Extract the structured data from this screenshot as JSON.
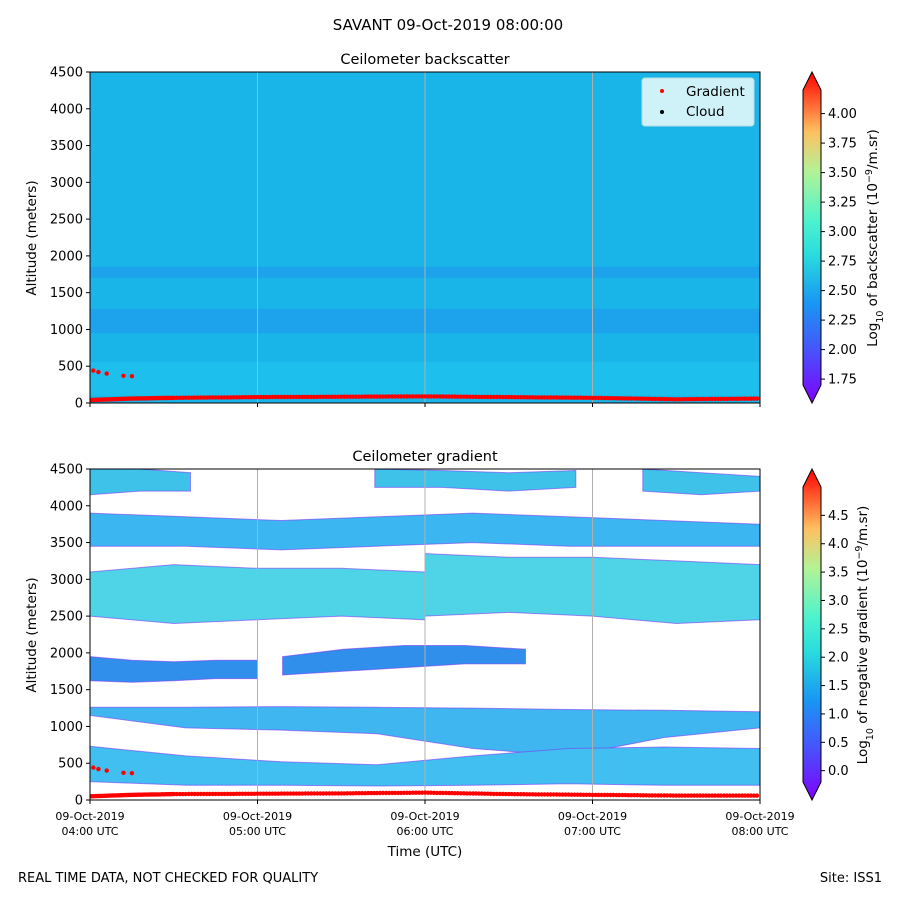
{
  "suptitle": "SAVANT 09-Oct-2019 08:00:00",
  "footer_left": "REAL TIME DATA, NOT CHECKED FOR QUALITY",
  "footer_right": "Site: ISS1",
  "colors": {
    "bg_backscatter": "#19b4e8",
    "band_dark": "#2196ef",
    "band_light": "#21c8ee",
    "gradient_marker": "#ff0000",
    "cloud_marker": "#000000",
    "legend_bg": "#cff2f8"
  },
  "chart_data": [
    {
      "type": "heatmap",
      "title": "Ceilometer backscatter",
      "ylabel": "Altitude (meters)",
      "xlabel": "",
      "xlim": [
        4.0,
        8.0
      ],
      "ylim": [
        0,
        4500
      ],
      "yticks": [
        "0",
        "500",
        "1000",
        "1500",
        "2000",
        "2500",
        "3000",
        "3500",
        "4000",
        "4500"
      ],
      "xticks_hours": [
        4,
        5,
        6,
        7,
        8
      ],
      "show_xticklabels": false,
      "legend": {
        "position": "top-right",
        "entries": [
          "Gradient",
          "Cloud"
        ]
      },
      "colorbar": {
        "label": "Log10 of backscatter (10^-9/m.sr)",
        "label_prefix": "Log",
        "label_sub": "10",
        "label_mid": " of backscatter (10",
        "label_sup": "−9",
        "label_suffix": "/m.sr)",
        "range": [
          1.7,
          4.2
        ],
        "ticks": [
          "1.75",
          "2.00",
          "2.25",
          "2.50",
          "2.75",
          "3.00",
          "3.25",
          "3.50",
          "3.75",
          "4.00"
        ]
      },
      "bands": [
        {
          "alt_lo": 100,
          "alt_hi": 560,
          "shade": "light"
        },
        {
          "alt_lo": 950,
          "alt_hi": 1280,
          "shade": "dark"
        },
        {
          "alt_lo": 1700,
          "alt_hi": 1850,
          "shade": "dark"
        }
      ],
      "gradient_points": {
        "baseline": [
          [
            4.0,
            40
          ],
          [
            4.25,
            60
          ],
          [
            4.5,
            70
          ],
          [
            5.0,
            80
          ],
          [
            5.5,
            85
          ],
          [
            6.0,
            90
          ],
          [
            6.5,
            80
          ],
          [
            7.0,
            70
          ],
          [
            7.5,
            50
          ],
          [
            8.0,
            60
          ]
        ],
        "layer": [
          [
            4.02,
            440
          ],
          [
            4.05,
            420
          ],
          [
            4.1,
            400
          ],
          [
            4.2,
            370
          ],
          [
            4.25,
            365
          ]
        ]
      }
    },
    {
      "type": "heatmap",
      "title": "Ceilometer gradient",
      "ylabel": "Altitude (meters)",
      "xlabel": "Time (UTC)",
      "xlim": [
        4.0,
        8.0
      ],
      "ylim": [
        0,
        4500
      ],
      "yticks": [
        "0",
        "500",
        "1000",
        "1500",
        "2000",
        "2500",
        "3000",
        "3500",
        "4000",
        "4500"
      ],
      "xticks_hours": [
        4,
        5,
        6,
        7,
        8
      ],
      "xtick_labels": [
        [
          "09-Oct-2019",
          "04:00 UTC"
        ],
        [
          "09-Oct-2019",
          "05:00 UTC"
        ],
        [
          "09-Oct-2019",
          "06:00 UTC"
        ],
        [
          "09-Oct-2019",
          "07:00 UTC"
        ],
        [
          "09-Oct-2019",
          "08:00 UTC"
        ]
      ],
      "colorbar": {
        "label": "Log10 of negative gradient (10^-9/m.sr)",
        "label_prefix": "Log",
        "label_sub": "10",
        "label_mid": " of negative gradient (10",
        "label_sup": "−9",
        "label_suffix": "/m.sr)",
        "range": [
          -0.2,
          5.0
        ],
        "ticks": [
          "0.0",
          "0.5",
          "1.0",
          "1.5",
          "2.0",
          "2.5",
          "3.0",
          "3.5",
          "4.0",
          "4.5"
        ]
      },
      "layers": [
        {
          "t0": 4.0,
          "t1": 8.0,
          "alt_top": [
            1260,
            1260,
            1270,
            1260,
            1250,
            1230,
            1220,
            1200
          ],
          "alt_bot": [
            1150,
            980,
            950,
            900,
            700,
            600,
            850,
            980
          ],
          "fill": "#3fb6f0"
        },
        {
          "t0": 4.0,
          "t1": 8.0,
          "alt_top": [
            730,
            600,
            520,
            480,
            600,
            700,
            720,
            700
          ],
          "alt_bot": [
            250,
            200,
            200,
            190,
            200,
            220,
            200,
            200
          ],
          "fill": "#40bff0"
        },
        {
          "t0": 4.0,
          "t1": 5.0,
          "alt_top": [
            1950,
            1900,
            1880,
            1900,
            1900
          ],
          "alt_bot": [
            1620,
            1600,
            1620,
            1650,
            1650
          ],
          "fill": "#2f8fea"
        },
        {
          "t0": 5.15,
          "t1": 6.6,
          "alt_top": [
            1950,
            2050,
            2100,
            2100,
            2050
          ],
          "alt_bot": [
            1700,
            1750,
            1800,
            1850,
            1850
          ],
          "fill": "#2f8fea"
        },
        {
          "t0": 4.0,
          "t1": 6.0,
          "alt_top": [
            3100,
            3200,
            3150,
            3150,
            3100
          ],
          "alt_bot": [
            2500,
            2400,
            2450,
            2500,
            2450
          ],
          "fill": "#4fd3e6"
        },
        {
          "t0": 6.0,
          "t1": 8.0,
          "alt_top": [
            3350,
            3300,
            3300,
            3250,
            3200
          ],
          "alt_bot": [
            2500,
            2550,
            2500,
            2400,
            2450
          ],
          "fill": "#4fd3e6"
        },
        {
          "t0": 4.0,
          "t1": 8.0,
          "alt_top": [
            3900,
            3850,
            3800,
            3850,
            3900,
            3850,
            3800,
            3750
          ],
          "alt_bot": [
            3450,
            3450,
            3400,
            3450,
            3500,
            3450,
            3450,
            3450
          ],
          "fill": "#3bb6f0"
        },
        {
          "t0": 4.0,
          "t1": 4.6,
          "alt_top": [
            4500,
            4500,
            4450
          ],
          "alt_bot": [
            4150,
            4200,
            4200
          ],
          "fill": "#3fc2ea"
        },
        {
          "t0": 5.7,
          "t1": 6.9,
          "alt_top": [
            4500,
            4480,
            4450,
            4480
          ],
          "alt_bot": [
            4250,
            4250,
            4200,
            4250
          ],
          "fill": "#3fc2ea"
        },
        {
          "t0": 7.3,
          "t1": 8.0,
          "alt_top": [
            4500,
            4450,
            4400
          ],
          "alt_bot": [
            4200,
            4150,
            4200
          ],
          "fill": "#3fc2ea"
        }
      ],
      "gradient_points": {
        "baseline": [
          [
            4.0,
            50
          ],
          [
            4.25,
            70
          ],
          [
            4.5,
            80
          ],
          [
            5.0,
            85
          ],
          [
            5.5,
            90
          ],
          [
            6.0,
            100
          ],
          [
            6.5,
            80
          ],
          [
            7.0,
            70
          ],
          [
            7.5,
            60
          ],
          [
            8.0,
            60
          ]
        ],
        "layer": [
          [
            4.02,
            440
          ],
          [
            4.05,
            420
          ],
          [
            4.1,
            400
          ],
          [
            4.2,
            370
          ],
          [
            4.25,
            365
          ]
        ]
      }
    }
  ]
}
